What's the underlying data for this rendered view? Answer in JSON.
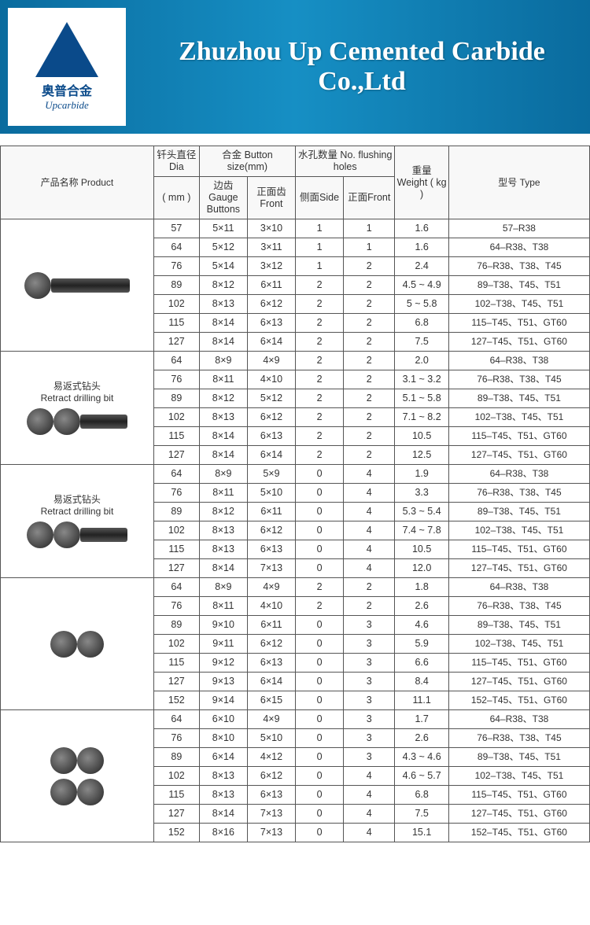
{
  "banner": {
    "logo_cn": "奥普合金",
    "logo_en": "Upcarbide",
    "title": "Zhuzhou Up Cemented Carbide Co.,Ltd"
  },
  "columns": {
    "product": "产品名称           Product",
    "dia_group": "钎头直径 Dia",
    "dia_unit": "( mm )",
    "button_group": "合金         Button size(mm)",
    "gauge": "边齿 Gauge Buttons",
    "front": "正面齿 Front",
    "holes_group": "水孔数量         No. flushing holes",
    "side": "侧面Side",
    "front2": "正面Front",
    "weight": "重量 Weight ( kg )",
    "type": "型号           Type"
  },
  "groups": [
    {
      "label": "",
      "imgs": 1,
      "shaft": true,
      "rows": [
        [
          "57",
          "5×11",
          "3×10",
          "1",
          "1",
          "1.6",
          "57–R38"
        ],
        [
          "64",
          "5×12",
          "3×11",
          "1",
          "1",
          "1.6",
          "64–R38、T38"
        ],
        [
          "76",
          "5×14",
          "3×12",
          "1",
          "2",
          "2.4",
          "76–R38、T38、T45"
        ],
        [
          "89",
          "8×12",
          "6×11",
          "2",
          "2",
          "4.5 ~ 4.9",
          "89–T38、T45、T51"
        ],
        [
          "102",
          "8×13",
          "6×12",
          "2",
          "2",
          "5 ~ 5.8",
          "102–T38、T45、T51"
        ],
        [
          "115",
          "8×14",
          "6×13",
          "2",
          "2",
          "6.8",
          "115–T45、T51、GT60"
        ],
        [
          "127",
          "8×14",
          "6×14",
          "2",
          "2",
          "7.5",
          "127–T45、T51、GT60"
        ]
      ]
    },
    {
      "label": "易返式钻头\nRetract drilling bit",
      "imgs": 2,
      "shaft": true,
      "rows": [
        [
          "64",
          "8×9",
          "4×9",
          "2",
          "2",
          "2.0",
          "64–R38、T38"
        ],
        [
          "76",
          "8×11",
          "4×10",
          "2",
          "2",
          "3.1 ~ 3.2",
          "76–R38、T38、T45"
        ],
        [
          "89",
          "8×12",
          "5×12",
          "2",
          "2",
          "5.1 ~ 5.8",
          "89–T38、T45、T51"
        ],
        [
          "102",
          "8×13",
          "6×12",
          "2",
          "2",
          "7.1 ~ 8.2",
          "102–T38、T45、T51"
        ],
        [
          "115",
          "8×14",
          "6×13",
          "2",
          "2",
          "10.5",
          "115–T45、T51、GT60"
        ],
        [
          "127",
          "8×14",
          "6×14",
          "2",
          "2",
          "12.5",
          "127–T45、T51、GT60"
        ]
      ]
    },
    {
      "label": "易返式钻头\nRetract drilling bit",
      "imgs": 2,
      "shaft": true,
      "rows": [
        [
          "64",
          "8×9",
          "5×9",
          "0",
          "4",
          "1.9",
          "64–R38、T38"
        ],
        [
          "76",
          "8×11",
          "5×10",
          "0",
          "4",
          "3.3",
          "76–R38、T38、T45"
        ],
        [
          "89",
          "8×12",
          "6×11",
          "0",
          "4",
          "5.3 ~ 5.4",
          "89–T38、T45、T51"
        ],
        [
          "102",
          "8×13",
          "6×12",
          "0",
          "4",
          "7.4 ~ 7.8",
          "102–T38、T45、T51"
        ],
        [
          "115",
          "8×13",
          "6×13",
          "0",
          "4",
          "10.5",
          "115–T45、T51、GT60"
        ],
        [
          "127",
          "8×14",
          "7×13",
          "0",
          "4",
          "12.0",
          "127–T45、T51、GT60"
        ]
      ]
    },
    {
      "label": "",
      "imgs": 2,
      "shaft": false,
      "rows": [
        [
          "64",
          "8×9",
          "4×9",
          "2",
          "2",
          "1.8",
          "64–R38、T38"
        ],
        [
          "76",
          "8×11",
          "4×10",
          "2",
          "2",
          "2.6",
          "76–R38、T38、T45"
        ],
        [
          "89",
          "9×10",
          "6×11",
          "0",
          "3",
          "4.6",
          "89–T38、T45、T51"
        ],
        [
          "102",
          "9×11",
          "6×12",
          "0",
          "3",
          "5.9",
          "102–T38、T45、T51"
        ],
        [
          "115",
          "9×12",
          "6×13",
          "0",
          "3",
          "6.6",
          "115–T45、T51、GT60"
        ],
        [
          "127",
          "9×13",
          "6×14",
          "0",
          "3",
          "8.4",
          "127–T45、T51、GT60"
        ],
        [
          "152",
          "9×14",
          "6×15",
          "0",
          "3",
          "11.1",
          "152–T45、T51、GT60"
        ]
      ]
    },
    {
      "label": "",
      "imgs": 3,
      "shaft": false,
      "rows": [
        [
          "64",
          "6×10",
          "4×9",
          "0",
          "3",
          "1.7",
          "64–R38、T38"
        ],
        [
          "76",
          "8×10",
          "5×10",
          "0",
          "3",
          "2.6",
          "76–R38、T38、T45"
        ],
        [
          "89",
          "6×14",
          "4×12",
          "0",
          "3",
          "4.3 ~ 4.6",
          "89–T38、T45、T51"
        ],
        [
          "102",
          "8×13",
          "6×12",
          "0",
          "4",
          "4.6 ~ 5.7",
          "102–T38、T45、T51"
        ],
        [
          "115",
          "8×13",
          "6×13",
          "0",
          "4",
          "6.8",
          "115–T45、T51、GT60"
        ],
        [
          "127",
          "8×14",
          "7×13",
          "0",
          "4",
          "7.5",
          "127–T45、T51、GT60"
        ],
        [
          "152",
          "8×16",
          "7×13",
          "0",
          "4",
          "15.1",
          "152–T45、T51、GT60"
        ]
      ]
    }
  ]
}
